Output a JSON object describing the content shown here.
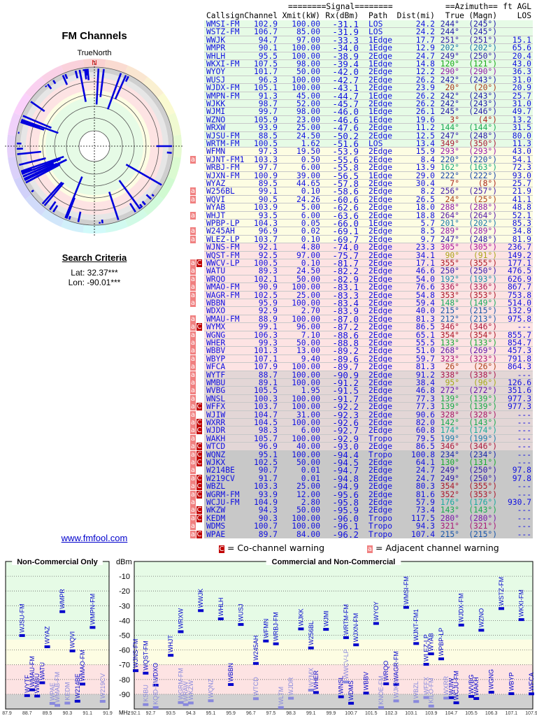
{
  "left": {
    "title": "FM Channels",
    "north_label": "TrueNorth",
    "north_marker": "N",
    "search_title": "Search Criteria",
    "lat": "Lat: 32.37***",
    "lon": "Lon: -90.01***",
    "site_link": "www.fmfool.com"
  },
  "table": {
    "group_signal": "========Signal========",
    "group_azimuth": "==Azimuth==",
    "group_agl": "ft AGL",
    "headers": [
      "Callsign",
      "Channel",
      "Xmit(kW)",
      "Rx(dBm)",
      "Path",
      "Dist(mi)",
      "True",
      "(Magn)",
      "LOS"
    ],
    "band_colors": {
      "g": "#e6fbe6",
      "y": "#fdfde3",
      "p": "#fde3e3",
      "d": "#e3d6d6",
      "x": "#c8c8c8"
    },
    "rows": [
      [
        "",
        "WMSI-FM",
        "102.9",
        "100.00",
        "-31.1",
        "LOS",
        "24.2",
        244,
        245,
        "",
        "g"
      ],
      [
        "",
        "WSTZ-FM",
        "106.7",
        "85.00",
        "-31.9",
        "LOS",
        "24.2",
        244,
        245,
        "",
        "g"
      ],
      [
        "",
        "WWJK",
        "94.7",
        "97.00",
        "-33.3",
        "1Edge",
        "17.7",
        251,
        251,
        "15.1",
        "g"
      ],
      [
        "",
        "WMPR",
        "90.1",
        "100.00",
        "-34.0",
        "1Edge",
        "12.9",
        202,
        202,
        "65.6",
        "g"
      ],
      [
        "",
        "WHLH",
        "95.5",
        "100.00",
        "-38.9",
        "2Edge",
        "24.7",
        249,
        250,
        "20.4",
        "g"
      ],
      [
        "",
        "WKXI-FM",
        "107.5",
        "98.00",
        "-39.4",
        "1Edge",
        "14.8",
        120,
        121,
        "43.0",
        "g"
      ],
      [
        "",
        "WYOY",
        "101.7",
        "50.00",
        "-42.0",
        "2Edge",
        "12.2",
        290,
        290,
        "36.3",
        "g"
      ],
      [
        "",
        "WUSJ",
        "96.3",
        "100.00",
        "-42.7",
        "2Edge",
        "26.2",
        242,
        243,
        "31.0",
        "g"
      ],
      [
        "",
        "WJDX-FM",
        "105.1",
        "100.00",
        "-43.1",
        "2Edge",
        "23.9",
        20,
        20,
        "20.9",
        "g"
      ],
      [
        "",
        "WMPN-FM",
        "91.3",
        "45.00",
        "-44.7",
        "1Edge",
        "26.2",
        242,
        243,
        "25.7",
        "g"
      ],
      [
        "",
        "WJKK",
        "98.7",
        "52.00",
        "-45.7",
        "2Edge",
        "26.2",
        242,
        243,
        "31.0",
        "g"
      ],
      [
        "",
        "WJMI",
        "99.7",
        "98.00",
        "-46.0",
        "1Edge",
        "26.1",
        245,
        246,
        "49.7",
        "g"
      ],
      [
        "",
        "WZNO",
        "105.9",
        "23.00",
        "-46.6",
        "1Edge",
        "19.6",
        3,
        4,
        "13.2",
        "g"
      ],
      [
        "",
        "WRXW",
        "93.9",
        "25.00",
        "-47.6",
        "2Edge",
        "11.2",
        144,
        144,
        "31.5",
        "g"
      ],
      [
        "",
        "WJSU-FM",
        "88.5",
        "24.50",
        "-50.2",
        "2Edge",
        "12.5",
        247,
        248,
        "80.0",
        "g"
      ],
      [
        "",
        "WRTM-FM",
        "100.5",
        "1.62",
        "-51.6",
        "LOS",
        "13.4",
        349,
        350,
        "11.3",
        "g"
      ],
      [
        "",
        "WFMN",
        "97.3",
        "19.50",
        "-53.9",
        "2Edge",
        "15.9",
        293,
        293,
        "43.0",
        "y"
      ],
      [
        "a",
        "WJNT-FM1",
        "103.3",
        "0.50",
        "-55.6",
        "2Edge",
        "8.4",
        220,
        220,
        "54.1",
        "y"
      ],
      [
        "",
        "WRBJ-FM",
        "97.7",
        "6.00",
        "-55.8",
        "2Edge",
        "13.9",
        162,
        163,
        "72.3",
        "y"
      ],
      [
        "",
        "WJXN-FM",
        "100.9",
        "39.00",
        "-56.5",
        "1Edge",
        "29.0",
        222,
        222,
        "93.0",
        "y"
      ],
      [
        "",
        "WYAZ",
        "89.5",
        "44.65",
        "-57.8",
        "2Edge",
        "30.4",
        7,
        8,
        "25.7",
        "y"
      ],
      [
        "a",
        "W256BL",
        "99.1",
        "0.10",
        "-58.6",
        "2Edge",
        "8.2",
        256,
        257,
        "21.9",
        "y"
      ],
      [
        "a",
        "WQVI",
        "90.5",
        "24.26",
        "-60.6",
        "2Edge",
        "26.5",
        24,
        25,
        "41.1",
        "y"
      ],
      [
        "",
        "WYAB",
        "103.9",
        "5.00",
        "-62.6",
        "2Edge",
        "18.0",
        288,
        288,
        "48.8",
        "y"
      ],
      [
        "a",
        "WHJT",
        "93.5",
        "6.00",
        "-63.6",
        "2Edge",
        "18.8",
        264,
        264,
        "52.1",
        "y"
      ],
      [
        "",
        "WPBP-LP",
        "104.3",
        "0.05",
        "-66.0",
        "1Edge",
        "5.7",
        201,
        202,
        "85.3",
        "y"
      ],
      [
        "a",
        "W245AH",
        "96.9",
        "0.02",
        "-69.1",
        "2Edge",
        "8.5",
        289,
        289,
        "34.8",
        "y"
      ],
      [
        "a",
        "WLEZ-LP",
        "103.7",
        "0.10",
        "-69.7",
        "2Edge",
        "9.7",
        247,
        248,
        "81.9",
        "y"
      ],
      [
        "",
        "WJNS-FM",
        "92.1",
        "4.80",
        "-74.0",
        "2Edge",
        "23.3",
        305,
        305,
        "236.7",
        "p"
      ],
      [
        "",
        "WQST-FM",
        "92.5",
        "97.00",
        "-75.7",
        "2Edge",
        "34.1",
        90,
        91,
        "149.2",
        "p"
      ],
      [
        "aC",
        "WWCV-LP",
        "100.5",
        "0.10",
        "-81.7",
        "2Edge",
        "17.1",
        355,
        355,
        "177.1",
        "p"
      ],
      [
        "a",
        "WATU",
        "89.3",
        "24.50",
        "-82.2",
        "2Edge",
        "46.6",
        250,
        250,
        "476.5",
        "p"
      ],
      [
        "a",
        "WRQO",
        "102.1",
        "50.00",
        "-82.9",
        "2Edge",
        "54.0",
        192,
        193,
        "626.9",
        "p"
      ],
      [
        "a",
        "WMAO-FM",
        "90.9",
        "100.00",
        "-83.1",
        "2Edge",
        "76.6",
        336,
        336,
        "867.7",
        "p"
      ],
      [
        "a",
        "WAGR-FM",
        "102.5",
        "25.00",
        "-83.3",
        "2Edge",
        "54.8",
        353,
        353,
        "753.8",
        "p"
      ],
      [
        "a",
        "WBBN",
        "95.9",
        "100.00",
        "-83.4",
        "2Edge",
        "59.4",
        148,
        149,
        "514.0",
        "p"
      ],
      [
        "",
        "WDXO",
        "92.9",
        "2.70",
        "-83.9",
        "2Edge",
        "40.0",
        215,
        215,
        "132.9",
        "p"
      ],
      [
        "a",
        "WMAU-FM",
        "88.9",
        "100.00",
        "-87.0",
        "2Edge",
        "81.3",
        212,
        213,
        "975.8",
        "p"
      ],
      [
        "aC",
        "WYMX",
        "99.1",
        "96.00",
        "-87.2",
        "2Edge",
        "86.5",
        346,
        346,
        "---",
        "p"
      ],
      [
        "a",
        "WGNG",
        "106.3",
        "7.10",
        "-88.6",
        "2Edge",
        "65.1",
        354,
        354,
        "855.7",
        "p"
      ],
      [
        "a",
        "WHER",
        "99.3",
        "50.00",
        "-88.8",
        "2Edge",
        "55.5",
        133,
        133,
        "854.7",
        "p"
      ],
      [
        "a",
        "WBBV",
        "101.3",
        "13.00",
        "-89.2",
        "2Edge",
        "51.0",
        268,
        269,
        "457.3",
        "p"
      ],
      [
        "a",
        "WBYP",
        "107.1",
        "9.40",
        "-89.6",
        "2Edge",
        "59.7",
        323,
        323,
        "791.8",
        "p"
      ],
      [
        "a",
        "WFCA",
        "107.9",
        "100.00",
        "-89.7",
        "2Edge",
        "81.3",
        26,
        26,
        "864.3",
        "p"
      ],
      [
        "a",
        "WYTF",
        "88.7",
        "100.00",
        "-90.9",
        "2Edge",
        "91.2",
        338,
        338,
        "---",
        "d"
      ],
      [
        "a",
        "WMBU",
        "89.1",
        "100.00",
        "-91.2",
        "2Edge",
        "38.4",
        95,
        96,
        "126.6",
        "d"
      ],
      [
        "a",
        "WVBG",
        "105.5",
        "1.95",
        "-91.5",
        "2Edge",
        "46.8",
        272,
        272,
        "351.6",
        "d"
      ],
      [
        "a",
        "WNSL",
        "100.3",
        "100.00",
        "-91.7",
        "2Edge",
        "77.3",
        139,
        139,
        "977.3",
        "d"
      ],
      [
        "aC",
        "WFFX",
        "103.7",
        "100.00",
        "-92.2",
        "2Edge",
        "77.3",
        139,
        139,
        "977.3",
        "d"
      ],
      [
        "a",
        "WJIW",
        "104.7",
        "31.00",
        "-92.3",
        "2Edge",
        "90.6",
        328,
        328,
        "---",
        "d"
      ],
      [
        "aC",
        "WXRR",
        "104.5",
        "100.00",
        "-92.6",
        "2Edge",
        "82.0",
        142,
        143,
        "---",
        "d"
      ],
      [
        "aC",
        "WJDR",
        "98.3",
        "6.00",
        "-92.7",
        "2Edge",
        "60.8",
        174,
        174,
        "---",
        "d"
      ],
      [
        "a",
        "WAKH",
        "105.7",
        "100.00",
        "-92.9",
        "Tropo",
        "79.5",
        199,
        199,
        "---",
        "d"
      ],
      [
        "aC",
        "WTCD",
        "96.9",
        "40.00",
        "-93.0",
        "2Edge",
        "86.5",
        346,
        346,
        "---",
        "d"
      ],
      [
        "aC",
        "WQNZ",
        "95.1",
        "100.00",
        "-94.4",
        "Tropo",
        "100.8",
        234,
        234,
        "---",
        "x"
      ],
      [
        "aC",
        "WJKX",
        "102.5",
        "50.00",
        "-94.5",
        "2Edge",
        "64.1",
        130,
        131,
        "---",
        "x"
      ],
      [
        "a",
        "W214BE",
        "90.7",
        "0.01",
        "-94.7",
        "2Edge",
        "24.7",
        249,
        250,
        "97.8",
        "x"
      ],
      [
        "aC",
        "W219CV",
        "91.7",
        "0.01",
        "-94.8",
        "2Edge",
        "24.7",
        249,
        250,
        "97.8",
        "x"
      ],
      [
        "aC",
        "WBZL",
        "103.3",
        "25.00",
        "-94.9",
        "2Edge",
        "80.3",
        354,
        355,
        "---",
        "x"
      ],
      [
        "aC",
        "WGRM-FM",
        "93.9",
        "12.00",
        "-95.6",
        "2Edge",
        "81.6",
        352,
        353,
        "---",
        "x"
      ],
      [
        "a",
        "WCJU-FM",
        "104.9",
        "2.80",
        "-95.8",
        "2Edge",
        "57.9",
        176,
        176,
        "930.7",
        "x"
      ],
      [
        "aC",
        "WKZW",
        "94.3",
        "50.00",
        "-95.9",
        "2Edge",
        "73.4",
        143,
        143,
        "---",
        "x"
      ],
      [
        "aC",
        "KEDM",
        "90.3",
        "100.00",
        "-96.0",
        "Tropo",
        "117.5",
        280,
        280,
        "---",
        "x"
      ],
      [
        "a",
        "WDMS",
        "100.7",
        "100.00",
        "-96.1",
        "Tropo",
        "94.3",
        321,
        321,
        "---",
        "x"
      ],
      [
        "aC",
        "WPAE",
        "89.7",
        "84.00",
        "-96.2",
        "Tropo",
        "107.4",
        215,
        215,
        "---",
        "x"
      ]
    ]
  },
  "legend": {
    "co_badge": "C",
    "co_text": "= Co-channel warning",
    "adj_badge": "a",
    "adj_text": "= Adjacent channel warning"
  },
  "chart_data": {
    "type": "scatter",
    "ylabel": "dBm",
    "unit_label": "MHz",
    "ylim": [
      0,
      -100
    ],
    "yticks": [
      -10,
      -20,
      -30,
      -40,
      -50,
      -60,
      -70,
      -80,
      -90
    ],
    "grid": true,
    "panels": [
      {
        "title": "Non-Commercial Only",
        "xlim": [
          87.9,
          91.9
        ],
        "xticks": [
          "87.9",
          "88.7",
          "89.5",
          "90.3",
          "91.1",
          "91.9"
        ]
      },
      {
        "title": "Commercial and Non-Commercial",
        "xlim": [
          92.1,
          107.9
        ],
        "xticks": [
          "92.1",
          "92.7",
          "93.5",
          "94.3",
          "95.1",
          "95.9",
          "96.7",
          "97.5",
          "98.3",
          "99.1",
          "99.9",
          "100.7",
          "101.5",
          "102.3",
          "103.1",
          "103.9",
          "104.7",
          "105.5",
          "106.3",
          "107.1",
          "107.9"
        ]
      }
    ],
    "points_source": "table.rows",
    "extra_points": [
      {
        "name": "WMAB-FM",
        "x": 89.9,
        "y": -97.5
      },
      {
        "name": "KSBU",
        "x": 92.5,
        "y": -97.0
      },
      {
        "name": "KQID-FM",
        "x": 92.9,
        "y": -99.5
      },
      {
        "name": "WRAW",
        "x": 94.1,
        "y": -97.0
      },
      {
        "name": "WLTM",
        "x": 97.9,
        "y": -99.0
      },
      {
        "name": "KNOE-FM",
        "x": 101.9,
        "y": -99.0
      },
      {
        "name": "KILO-FM",
        "x": 103.9,
        "y": -98.0
      }
    ],
    "bands": {
      "green": "#e6fbe6",
      "yellow": "#fdfde3",
      "pink": "#fde3e3",
      "grey": "#d0d0d0"
    }
  }
}
